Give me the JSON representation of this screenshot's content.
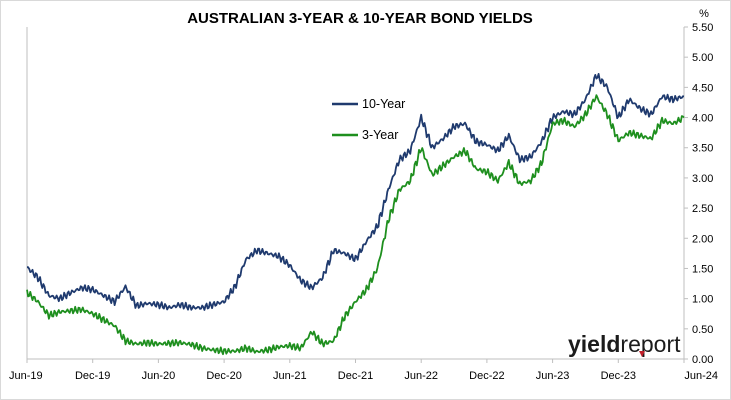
{
  "chart_data": {
    "type": "line",
    "title": "AUSTRALIAN 3-YEAR & 10-YEAR BOND YIELDS",
    "ylabel": "%",
    "xlabel": "",
    "ylim": [
      0,
      5.5
    ],
    "yticks": [
      "0.00",
      "0.50",
      "1.00",
      "1.50",
      "2.00",
      "2.50",
      "3.00",
      "3.50",
      "4.00",
      "4.50",
      "5.00",
      "5.50"
    ],
    "xticks": [
      "Jun-19",
      "Dec-19",
      "Jun-20",
      "Dec-20",
      "Jun-21",
      "Dec-21",
      "Jun-22",
      "Dec-22",
      "Jun-23",
      "Dec-23",
      "Jun-24"
    ],
    "grid": false,
    "legend": "center",
    "series": [
      {
        "name": "10-Year",
        "color": "#1f3a6e",
        "x": [
          "Jun-19",
          "Jul-19",
          "Aug-19",
          "Sep-19",
          "Oct-19",
          "Nov-19",
          "Dec-19",
          "Jan-20",
          "Feb-20",
          "Mar-20",
          "Apr-20",
          "May-20",
          "Jun-20",
          "Jul-20",
          "Aug-20",
          "Sep-20",
          "Oct-20",
          "Nov-20",
          "Dec-20",
          "Jan-21",
          "Feb-21",
          "Mar-21",
          "Apr-21",
          "May-21",
          "Jun-21",
          "Jul-21",
          "Aug-21",
          "Sep-21",
          "Oct-21",
          "Nov-21",
          "Dec-21",
          "Jan-22",
          "Feb-22",
          "Mar-22",
          "Apr-22",
          "May-22",
          "Jun-22",
          "Jul-22",
          "Aug-22",
          "Sep-22",
          "Oct-22",
          "Nov-22",
          "Dec-22",
          "Jan-23",
          "Feb-23",
          "Mar-23",
          "Apr-23",
          "May-23",
          "Jun-23",
          "Jul-23",
          "Aug-23",
          "Sep-23",
          "Oct-23",
          "Nov-23",
          "Dec-23",
          "Jan-24",
          "Feb-24",
          "Mar-24",
          "Apr-24",
          "May-24",
          "Jun-24"
        ],
        "values": [
          1.52,
          1.35,
          1.05,
          1.0,
          1.1,
          1.18,
          1.15,
          1.05,
          0.95,
          1.2,
          0.88,
          0.92,
          0.9,
          0.85,
          0.9,
          0.85,
          0.85,
          0.9,
          0.95,
          1.2,
          1.65,
          1.8,
          1.75,
          1.7,
          1.55,
          1.3,
          1.18,
          1.35,
          1.8,
          1.75,
          1.65,
          1.95,
          2.2,
          2.8,
          3.3,
          3.45,
          4.0,
          3.5,
          3.65,
          3.85,
          3.9,
          3.6,
          3.55,
          3.45,
          3.7,
          3.3,
          3.35,
          3.6,
          4.0,
          4.1,
          4.05,
          4.3,
          4.7,
          4.5,
          4.0,
          4.3,
          4.15,
          4.05,
          4.35,
          4.3,
          4.35
        ]
      },
      {
        "name": "3-Year",
        "color": "#1e8f1e",
        "x": [
          "Jun-19",
          "Jul-19",
          "Aug-19",
          "Sep-19",
          "Oct-19",
          "Nov-19",
          "Dec-19",
          "Jan-20",
          "Feb-20",
          "Mar-20",
          "Apr-20",
          "May-20",
          "Jun-20",
          "Jul-20",
          "Aug-20",
          "Sep-20",
          "Oct-20",
          "Nov-20",
          "Dec-20",
          "Jan-21",
          "Feb-21",
          "Mar-21",
          "Apr-21",
          "May-21",
          "Jun-21",
          "Jul-21",
          "Aug-21",
          "Sep-21",
          "Oct-21",
          "Nov-21",
          "Dec-21",
          "Jan-22",
          "Feb-22",
          "Mar-22",
          "Apr-22",
          "May-22",
          "Jun-22",
          "Jul-22",
          "Aug-22",
          "Sep-22",
          "Oct-22",
          "Nov-22",
          "Dec-22",
          "Jan-23",
          "Feb-23",
          "Mar-23",
          "Apr-23",
          "May-23",
          "Jun-23",
          "Jul-23",
          "Aug-23",
          "Sep-23",
          "Oct-23",
          "Nov-23",
          "Dec-23",
          "Jan-24",
          "Feb-24",
          "Mar-24",
          "Apr-24",
          "May-24",
          "Jun-24"
        ],
        "values": [
          1.1,
          0.95,
          0.72,
          0.78,
          0.8,
          0.82,
          0.75,
          0.65,
          0.55,
          0.3,
          0.25,
          0.27,
          0.25,
          0.26,
          0.27,
          0.24,
          0.18,
          0.15,
          0.13,
          0.13,
          0.18,
          0.12,
          0.15,
          0.2,
          0.22,
          0.18,
          0.45,
          0.25,
          0.3,
          0.7,
          0.95,
          1.15,
          1.5,
          2.3,
          2.8,
          2.95,
          3.5,
          3.05,
          3.2,
          3.35,
          3.45,
          3.15,
          3.1,
          2.95,
          3.25,
          2.9,
          2.95,
          3.25,
          3.9,
          3.95,
          3.85,
          4.05,
          4.35,
          4.05,
          3.62,
          3.75,
          3.7,
          3.65,
          3.95,
          3.9,
          4.0
        ]
      }
    ]
  },
  "logo": {
    "part1": "yield",
    "part2": "report"
  }
}
